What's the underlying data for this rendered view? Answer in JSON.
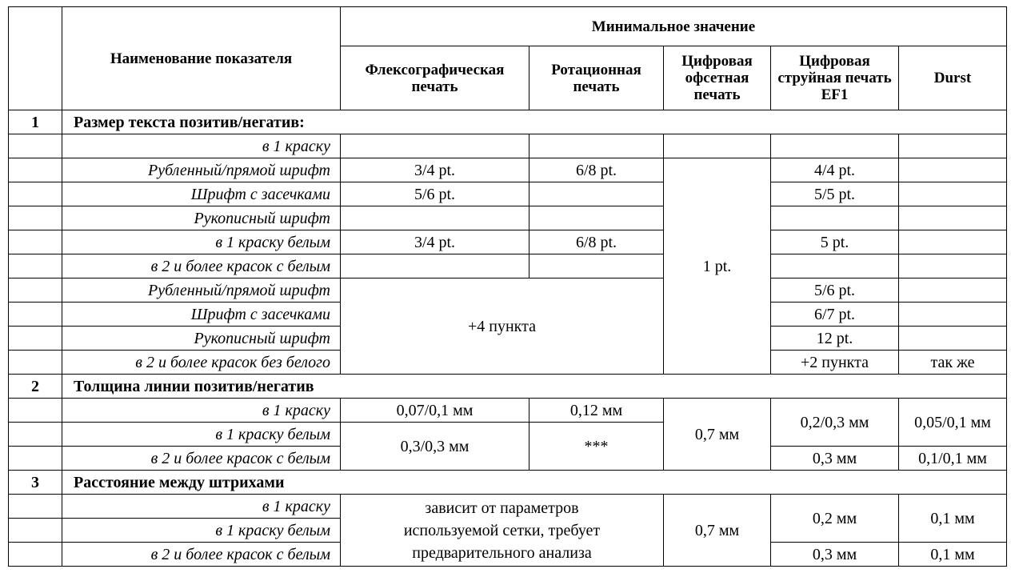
{
  "header": {
    "name_col": "Наименование показателя",
    "min_value": "Минимальное значение",
    "columns": [
      "Флексографическая печать",
      "Ротационная печать",
      "Цифровая офсетная печать",
      "Цифровая струйная печать EF1",
      "Durst"
    ]
  },
  "sections": [
    {
      "number": "1",
      "title": "Размер текста позитив/негатив:",
      "rows": [
        {
          "label": "в 1 краску"
        },
        {
          "label": "Рубленный/прямой шрифт",
          "flexo": "3/4 pt.",
          "rotary": "6/8 pt.",
          "offset": "1 pt.",
          "ef1": "4/4 pt."
        },
        {
          "label": "Шрифт с засечками",
          "flexo": "5/6 pt.",
          "ef1": "5/5 pt."
        },
        {
          "label": "Рукописный шрифт"
        },
        {
          "label": "в 1 краску белым",
          "flexo": "3/4 pt.",
          "rotary": "6/8 pt.",
          "ef1": "5 pt."
        },
        {
          "label": "в 2 и более красок с белым"
        },
        {
          "label": "Рубленный/прямой шрифт",
          "flexo_rotary": "+4 пункта",
          "ef1": "5/6 pt."
        },
        {
          "label": "Шрифт с засечками",
          "ef1": "6/7 pt."
        },
        {
          "label": "Рукописный шрифт",
          "ef1": "12 pt."
        },
        {
          "label": "в 2 и более красок без белого",
          "ef1": "+2 пункта",
          "durst": "так же"
        }
      ]
    },
    {
      "number": "2",
      "title": "Толщина линии позитив/негатив",
      "rows": [
        {
          "label": "в 1 краску",
          "flexo": "0,07/0,1 мм",
          "rotary": "0,12 мм",
          "offset": "0,7 мм",
          "ef1": "0,2/0,3 мм",
          "durst": "0,05/0,1 мм"
        },
        {
          "label": "в 1 краску белым",
          "flexo": "0,3/0,3 мм",
          "rotary": "***"
        },
        {
          "label": "в 2 и более красок с белым",
          "ef1": "0,3 мм",
          "durst": "0,1/0,1 мм"
        }
      ]
    },
    {
      "number": "3",
      "title": "Расстояние между штрихами",
      "rows": [
        {
          "label": "в 1 краску",
          "flexo_rotary": "зависит от параметров используемой сетки, требует предварительного анализа",
          "offset": "0,7 мм",
          "ef1": "0,2 мм",
          "durst": "0,1 мм"
        },
        {
          "label": "в 1 краску белым"
        },
        {
          "label": "в 2 и более красок с белым",
          "ef1": "0,3 мм",
          "durst": "0,1 мм"
        }
      ]
    }
  ]
}
